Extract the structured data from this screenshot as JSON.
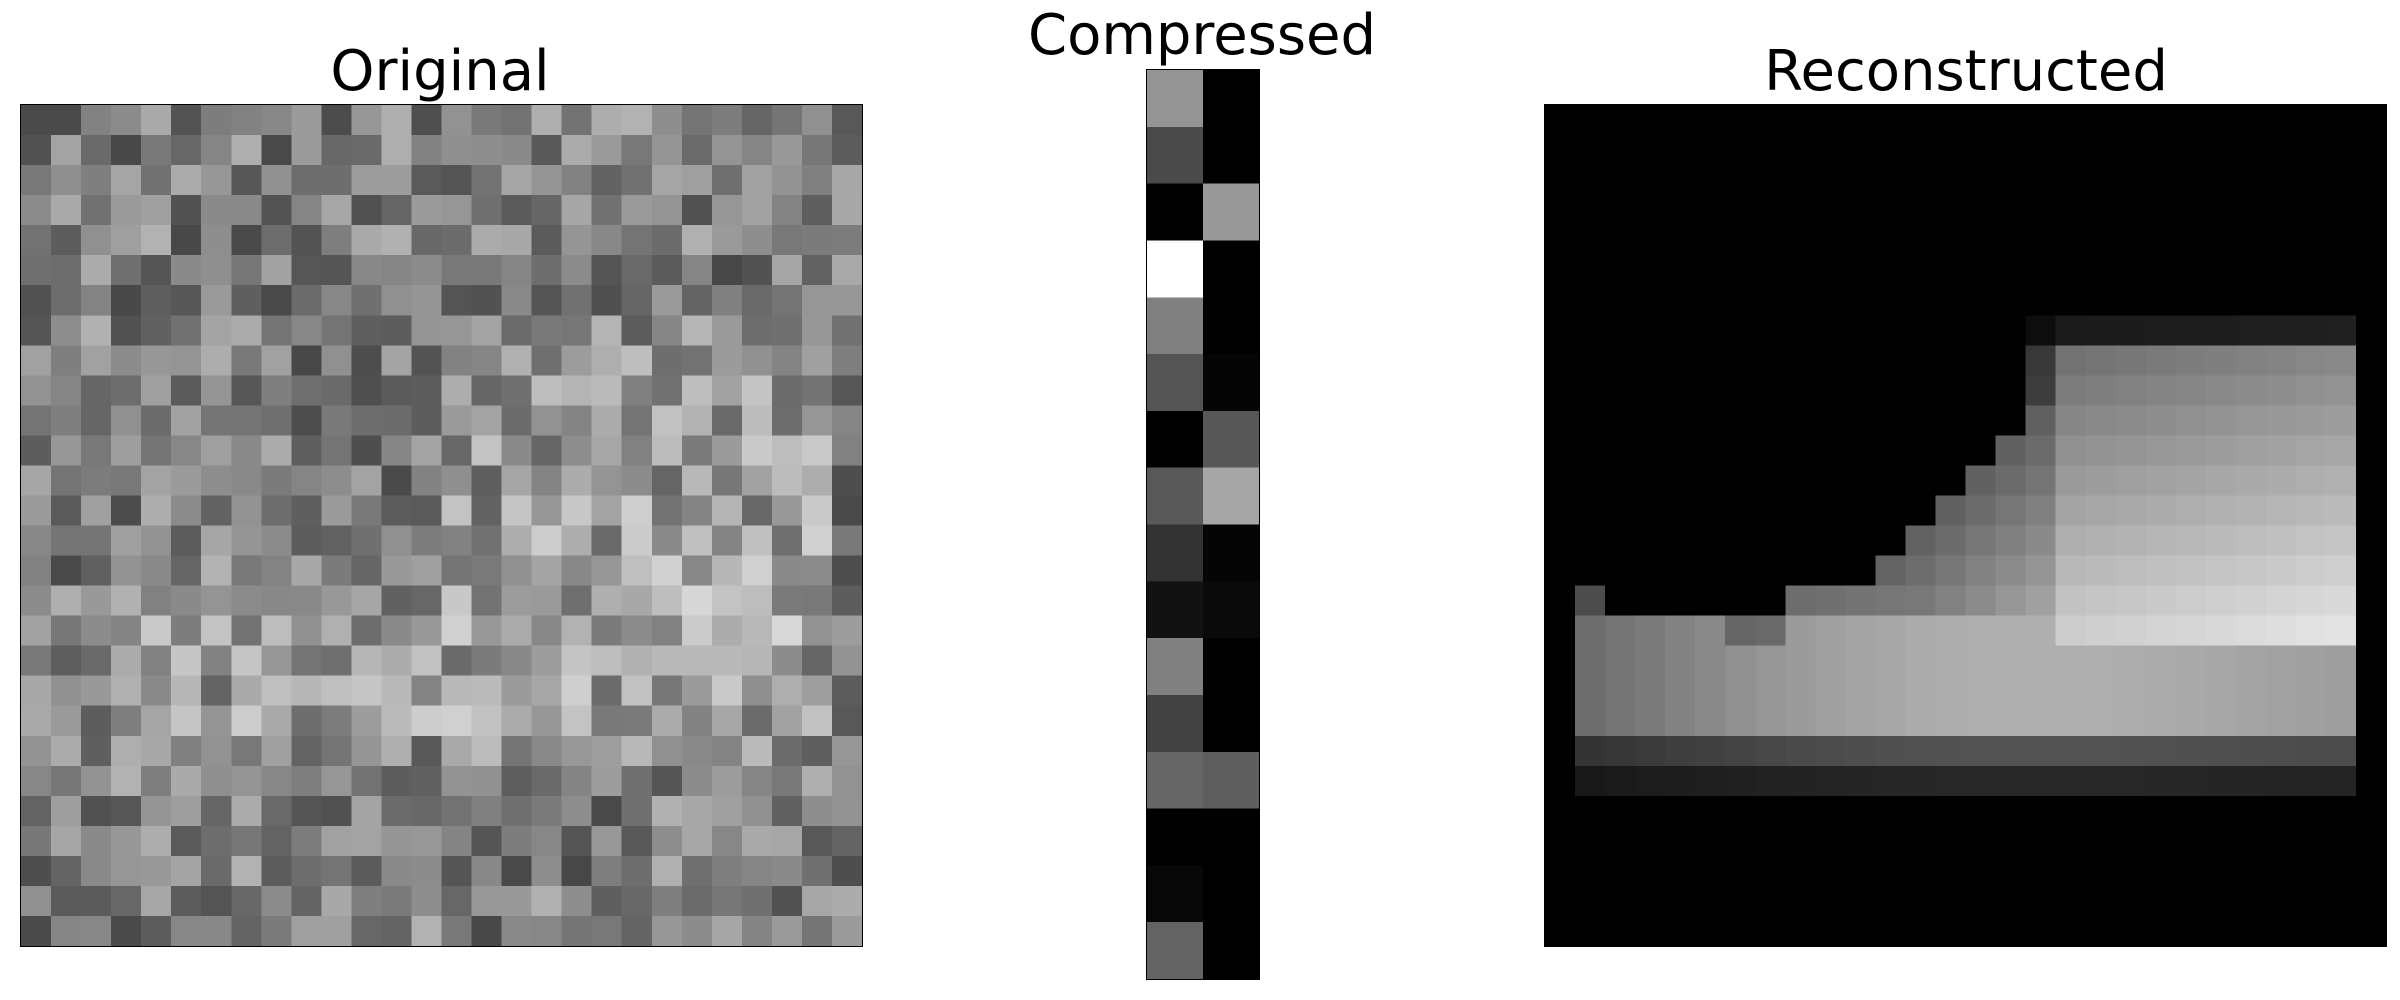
{
  "figure": {
    "colormap": "gray",
    "panels": [
      {
        "id": "original",
        "title": "Original",
        "rows": 28,
        "cols": 28,
        "content": "random grey noise with faint brighter shoe-shaped region"
      },
      {
        "id": "compressed",
        "title": "Compressed",
        "rows": 16,
        "cols": 2,
        "values": [
          [
            0.58,
            0.0
          ],
          [
            0.29,
            0.0
          ],
          [
            0.0,
            0.6
          ],
          [
            1.0,
            0.0
          ],
          [
            0.5,
            0.0
          ],
          [
            0.33,
            0.02
          ],
          [
            0.0,
            0.34
          ],
          [
            0.35,
            0.65
          ],
          [
            0.2,
            0.02
          ],
          [
            0.07,
            0.04
          ],
          [
            0.5,
            0.0
          ],
          [
            0.26,
            0.0
          ],
          [
            0.4,
            0.37
          ],
          [
            0.0,
            0.0
          ],
          [
            0.03,
            0.0
          ],
          [
            0.39,
            0.0
          ]
        ]
      },
      {
        "id": "reconstructed",
        "title": "Reconstructed",
        "rows": 28,
        "cols": 28,
        "content": "blurry grayscale ankle boot on black background"
      }
    ]
  }
}
